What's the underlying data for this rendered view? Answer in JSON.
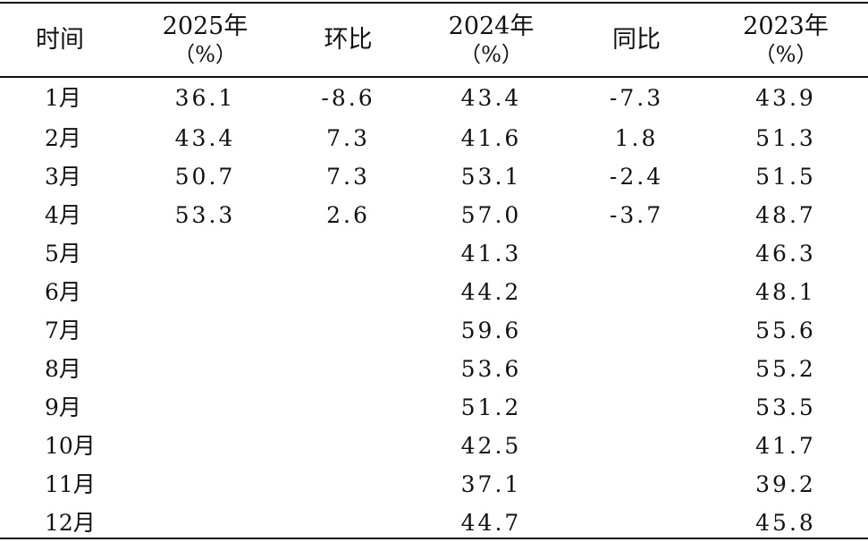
{
  "table": {
    "headers": {
      "time": "时间",
      "y2025": "2025年",
      "y2025_unit": "（%）",
      "mom": "环比",
      "y2024": "2024年",
      "y2024_unit": "（%）",
      "yoy": "同比",
      "y2023": "2023年",
      "y2023_unit": "（%）"
    },
    "rows": [
      {
        "month": "1月",
        "y2025": "36.1",
        "mom": "-8.6",
        "y2024": "43.4",
        "yoy": "-7.3",
        "y2023": "43.9"
      },
      {
        "month": "2月",
        "y2025": "43.4",
        "mom": "7.3",
        "y2024": "41.6",
        "yoy": "1.8",
        "y2023": "51.3"
      },
      {
        "month": "3月",
        "y2025": "50.7",
        "mom": "7.3",
        "y2024": "53.1",
        "yoy": "-2.4",
        "y2023": "51.5"
      },
      {
        "month": "4月",
        "y2025": "53.3",
        "mom": "2.6",
        "y2024": "57.0",
        "yoy": "-3.7",
        "y2023": "48.7"
      },
      {
        "month": "5月",
        "y2025": "",
        "mom": "",
        "y2024": "41.3",
        "yoy": "",
        "y2023": "46.3"
      },
      {
        "month": "6月",
        "y2025": "",
        "mom": "",
        "y2024": "44.2",
        "yoy": "",
        "y2023": "48.1"
      },
      {
        "month": "7月",
        "y2025": "",
        "mom": "",
        "y2024": "59.6",
        "yoy": "",
        "y2023": "55.6"
      },
      {
        "month": "8月",
        "y2025": "",
        "mom": "",
        "y2024": "53.6",
        "yoy": "",
        "y2023": "55.2"
      },
      {
        "month": "9月",
        "y2025": "",
        "mom": "",
        "y2024": "51.2",
        "yoy": "",
        "y2023": "53.5"
      },
      {
        "month": "10月",
        "y2025": "",
        "mom": "",
        "y2024": "42.5",
        "yoy": "",
        "y2023": "41.7"
      },
      {
        "month": "11月",
        "y2025": "",
        "mom": "",
        "y2024": "37.1",
        "yoy": "",
        "y2023": "39.2"
      },
      {
        "month": "12月",
        "y2025": "",
        "mom": "",
        "y2024": "44.7",
        "yoy": "",
        "y2023": "45.8"
      }
    ]
  }
}
